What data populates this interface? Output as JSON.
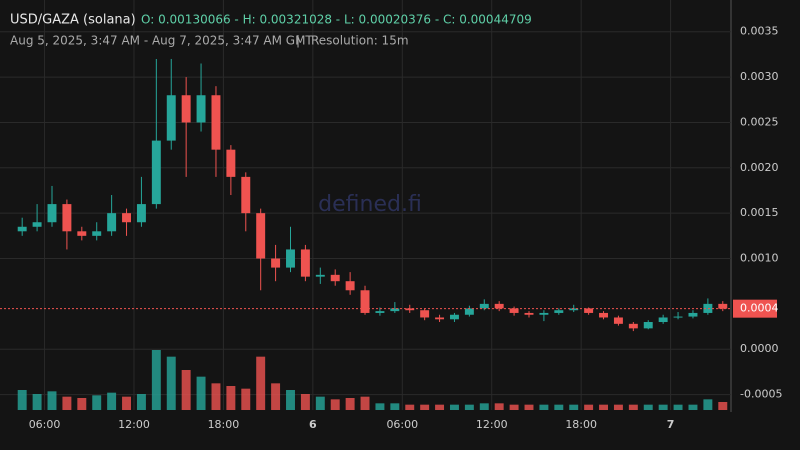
{
  "chart_data": {
    "type": "candlestick",
    "title": "USD/GAZA (solana)",
    "ohlc_summary": "O: 0.00130066 - H: 0.00321028 - L: 0.00020376 - C: 0.00044709",
    "subtitle": "Aug 5, 2025, 3:47 AM - Aug 7, 2025, 3:47 AM GMT",
    "resolution": "Resolution: 15m",
    "watermark": "defined.fi",
    "up_color": "#26a69a",
    "down_color": "#ef5350",
    "x": [
      "2025-08-05 04:00",
      "2025-08-05 05:00",
      "2025-08-05 06:00",
      "2025-08-05 07:00",
      "2025-08-05 08:00",
      "2025-08-05 09:00",
      "2025-08-05 10:00",
      "2025-08-05 11:00",
      "2025-08-05 12:00",
      "2025-08-05 13:00",
      "2025-08-05 14:00",
      "2025-08-05 15:00",
      "2025-08-05 16:00",
      "2025-08-05 17:00",
      "2025-08-05 18:00",
      "2025-08-05 19:00",
      "2025-08-05 20:00",
      "2025-08-05 21:00",
      "2025-08-05 22:00",
      "2025-08-05 23:00",
      "2025-08-06 00:00",
      "2025-08-06 01:00",
      "2025-08-06 02:00",
      "2025-08-06 03:00",
      "2025-08-06 04:00",
      "2025-08-06 05:00",
      "2025-08-06 06:00",
      "2025-08-06 07:00",
      "2025-08-06 08:00",
      "2025-08-06 09:00",
      "2025-08-06 10:00",
      "2025-08-06 11:00",
      "2025-08-06 12:00",
      "2025-08-06 13:00",
      "2025-08-06 14:00",
      "2025-08-06 15:00",
      "2025-08-06 16:00",
      "2025-08-06 17:00",
      "2025-08-06 18:00",
      "2025-08-06 19:00",
      "2025-08-06 20:00",
      "2025-08-06 21:00",
      "2025-08-06 22:00",
      "2025-08-06 23:00",
      "2025-08-07 00:00",
      "2025-08-07 01:00",
      "2025-08-07 02:00",
      "2025-08-07 03:00"
    ],
    "open": [
      0.0013,
      0.00135,
      0.0014,
      0.0016,
      0.0013,
      0.00125,
      0.0013,
      0.0015,
      0.0014,
      0.0016,
      0.0023,
      0.0028,
      0.0025,
      0.0028,
      0.0022,
      0.0019,
      0.0015,
      0.001,
      0.0009,
      0.0011,
      0.0008,
      0.00082,
      0.00075,
      0.00065,
      0.0004,
      0.00042,
      0.00045,
      0.00043,
      0.00035,
      0.00033,
      0.00038,
      0.00045,
      0.0005,
      0.00045,
      0.0004,
      0.00038,
      0.0004,
      0.00043,
      0.00045,
      0.0004,
      0.00035,
      0.00028,
      0.00023,
      0.0003,
      0.00035,
      0.00036,
      0.0004,
      0.0005
    ],
    "high": [
      0.00145,
      0.0016,
      0.0018,
      0.00165,
      0.00135,
      0.0014,
      0.0017,
      0.00155,
      0.0019,
      0.0032,
      0.0032,
      0.003,
      0.00315,
      0.0029,
      0.00225,
      0.00195,
      0.00155,
      0.00115,
      0.00135,
      0.00115,
      0.0009,
      0.00088,
      0.00085,
      0.0007,
      0.00046,
      0.00052,
      0.00049,
      0.00045,
      0.00038,
      0.0004,
      0.00048,
      0.00055,
      0.00053,
      0.00047,
      0.00042,
      0.00043,
      0.00045,
      0.00049,
      0.00046,
      0.00042,
      0.00037,
      0.0003,
      0.00032,
      0.00038,
      0.00041,
      0.00043,
      0.00056,
      0.00053
    ],
    "low": [
      0.00125,
      0.0013,
      0.00135,
      0.0011,
      0.0012,
      0.0012,
      0.00125,
      0.00125,
      0.00135,
      0.00155,
      0.0022,
      0.0019,
      0.0024,
      0.0019,
      0.0017,
      0.0013,
      0.00065,
      0.00075,
      0.00085,
      0.00075,
      0.00072,
      0.0007,
      0.0006,
      0.00038,
      0.00037,
      0.0004,
      0.0004,
      0.00032,
      0.0003,
      0.0003,
      0.00036,
      0.00043,
      0.00042,
      0.00037,
      0.00035,
      0.00031,
      0.00038,
      0.00041,
      0.00038,
      0.00033,
      0.00026,
      0.0002,
      0.00022,
      0.00028,
      0.00033,
      0.00034,
      0.00038,
      0.00042
    ],
    "close": [
      0.00135,
      0.0014,
      0.0016,
      0.0013,
      0.00125,
      0.0013,
      0.0015,
      0.0014,
      0.0016,
      0.0023,
      0.0028,
      0.0025,
      0.0028,
      0.0022,
      0.0019,
      0.0015,
      0.001,
      0.0009,
      0.0011,
      0.0008,
      0.00082,
      0.00075,
      0.00065,
      0.0004,
      0.00042,
      0.00045,
      0.00043,
      0.00035,
      0.00033,
      0.00038,
      0.00045,
      0.0005,
      0.00045,
      0.0004,
      0.00038,
      0.0004,
      0.00043,
      0.00045,
      0.0004,
      0.00035,
      0.00028,
      0.00023,
      0.0003,
      0.00035,
      0.00036,
      0.0004,
      0.0005,
      0.00044709
    ],
    "volume": [
      15,
      12,
      14,
      10,
      9,
      11,
      13,
      10,
      12,
      45,
      40,
      30,
      25,
      20,
      18,
      16,
      40,
      20,
      15,
      12,
      10,
      8,
      9,
      10,
      5,
      5,
      4,
      4,
      4,
      4,
      4,
      5,
      5,
      4,
      4,
      4,
      4,
      4,
      4,
      4,
      4,
      4,
      4,
      4,
      4,
      4,
      8,
      6
    ],
    "last_label": "0.0004",
    "xlim": [
      "2025-08-05 03:47",
      "2025-08-07 03:47"
    ],
    "xticks": [
      {
        "value": "2025-08-05 06:00",
        "label": "06:00"
      },
      {
        "value": "2025-08-05 12:00",
        "label": "12:00"
      },
      {
        "value": "2025-08-05 18:00",
        "label": "18:00"
      },
      {
        "value": "2025-08-06 00:00",
        "label": "6"
      },
      {
        "value": "2025-08-06 06:00",
        "label": "06:00"
      },
      {
        "value": "2025-08-06 12:00",
        "label": "12:00"
      },
      {
        "value": "2025-08-06 18:00",
        "label": "18:00"
      },
      {
        "value": "2025-08-07 00:00",
        "label": "7"
      }
    ],
    "ylim": [
      -0.00067,
      0.00385
    ],
    "yticks": [
      {
        "value": -0.0005,
        "label": "-0.0005"
      },
      {
        "value": 0,
        "label": "0.0000"
      },
      {
        "value": 0.001,
        "label": "0.0010"
      },
      0.0015,
      {
        "value": 0.002,
        "label": "0.0020"
      },
      0.0025,
      {
        "value": 0.003,
        "label": "0.0030"
      },
      0.0035
    ],
    "grid": true
  }
}
